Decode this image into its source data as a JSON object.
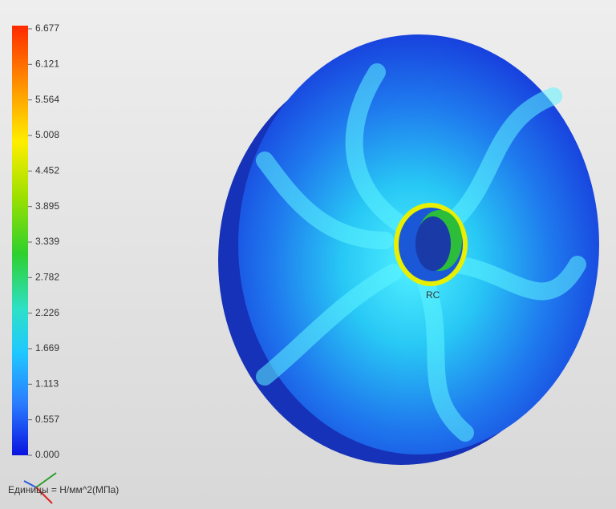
{
  "legend": {
    "labels": [
      "6.677",
      "6.121",
      "5.564",
      "5.008",
      "4.452",
      "3.895",
      "3.339",
      "2.782",
      "2.226",
      "1.669",
      "1.113",
      "0.557",
      "0.000"
    ],
    "units": "Единицы = Н/мм^2(МПа)"
  },
  "annotations": {
    "hub": "RC"
  }
}
